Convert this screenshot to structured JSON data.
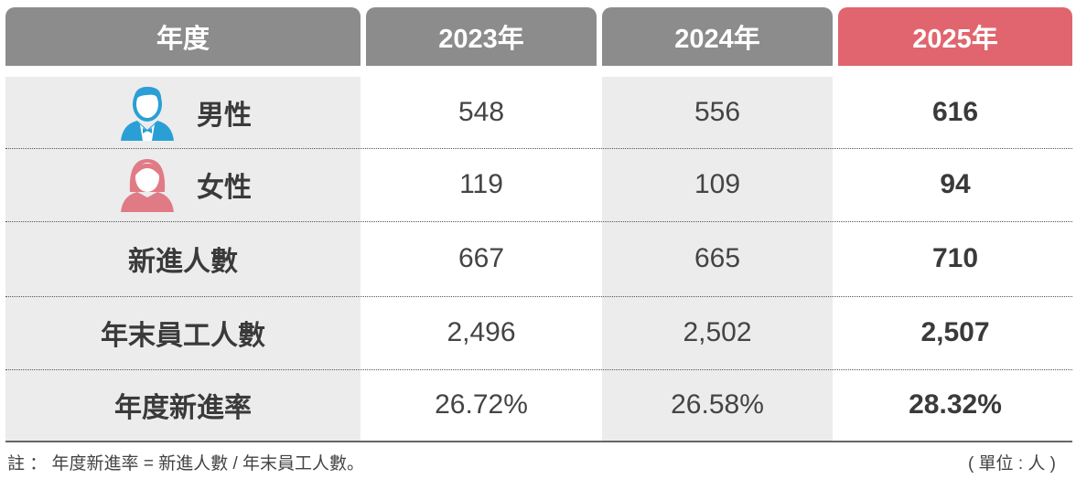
{
  "table": {
    "header": [
      "年度",
      "2023年",
      "2024年",
      "2025年"
    ],
    "rows": [
      [
        "男性",
        "548",
        "556",
        "616"
      ],
      [
        "女性",
        "119",
        "109",
        "94"
      ],
      [
        "新進人數",
        "667",
        "665",
        "710"
      ],
      [
        "年末員工人數",
        "2,496",
        "2,502",
        "2,507"
      ],
      [
        "年度新進率",
        "26.72%",
        "26.58%",
        "28.32%"
      ]
    ]
  },
  "footer": {
    "note": "註 ： 年度新進率 = 新進人數 / 年末員工人數。",
    "unit": "( 單位 : 人 )"
  }
}
